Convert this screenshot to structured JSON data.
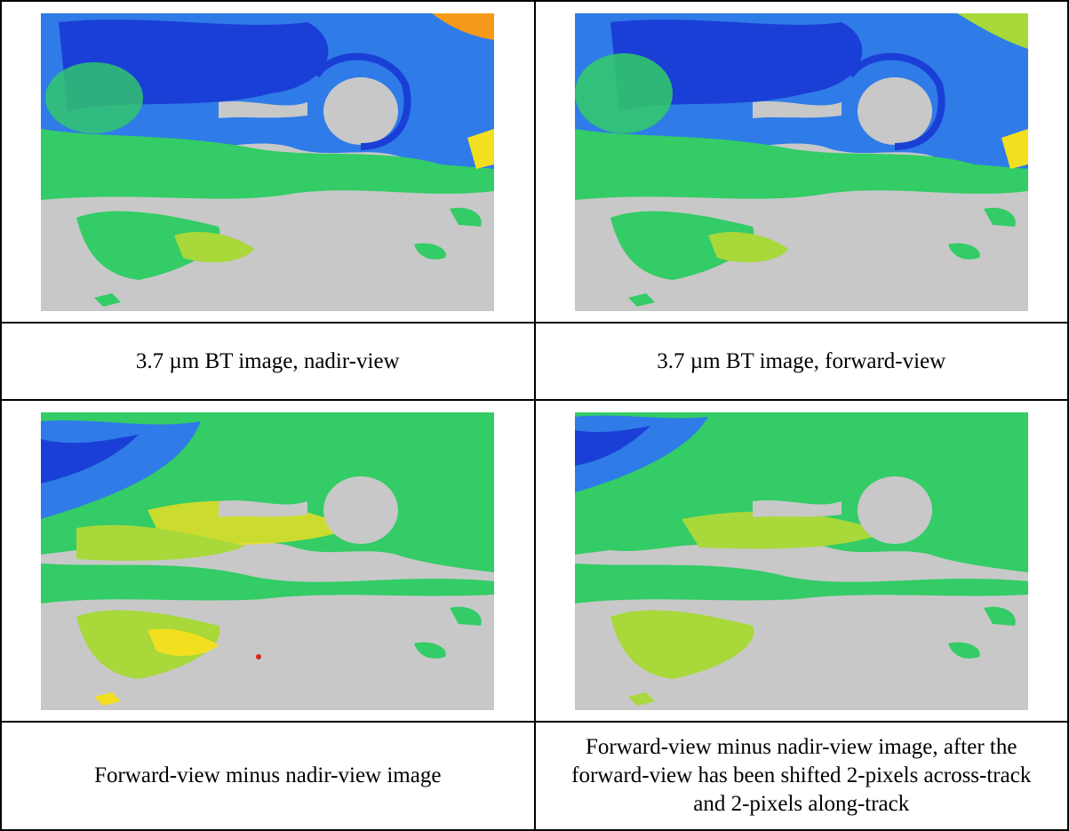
{
  "panels": [
    {
      "caption": "3.7 µm BT image, nadir-view",
      "palette": "cool"
    },
    {
      "caption": "3.7 µm BT image, forward-view",
      "palette": "cool"
    },
    {
      "caption": "Forward-view minus nadir-view image",
      "palette": "warm"
    },
    {
      "caption": "Forward-view minus nadir-view image, after the forward-view has been shifted 2-pixels across-track and 2-pixels along-track",
      "palette": "mixed"
    }
  ],
  "colors": {
    "no_data_gray": "#c8c8c8",
    "deep_blue": "#1a3fd6",
    "blue": "#2f7be8",
    "cyan": "#1fc8c8",
    "green": "#33cc66",
    "yellow_green": "#a8d83a",
    "yellow": "#f2e020",
    "orange": "#f59a1a",
    "red": "#d8261a"
  }
}
